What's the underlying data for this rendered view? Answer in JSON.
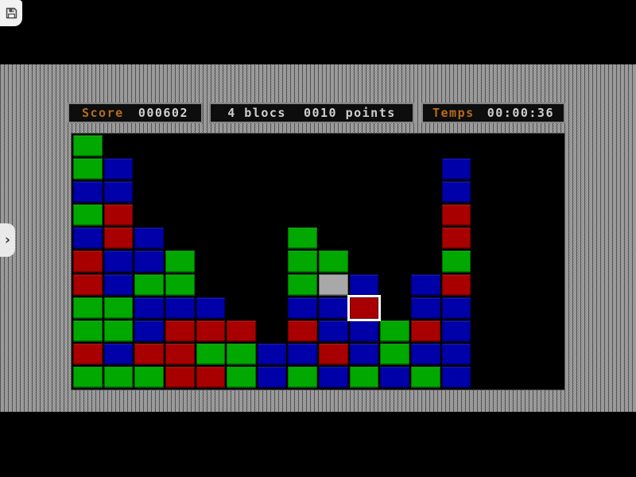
{
  "toolbar": {
    "save_icon": "floppy-disk-icon"
  },
  "hud": {
    "score_label": "Score",
    "score_value": "000602",
    "blocks_text": "4 blocs",
    "points_text": "0010 points",
    "time_label": "Temps",
    "time_value": "00:00:36"
  },
  "drawer": {
    "chevron": "›"
  },
  "colors": {
    "green": "#00A800",
    "blue": "#0000A8",
    "red": "#A80000",
    "gray": "#A8A8A8",
    "label_orange": "#B76B1A",
    "value_gray": "#CFCFCF",
    "cursor_outline": "#FCFCFC",
    "board_background": "#000000"
  },
  "board": {
    "columns": 16,
    "rows": 11,
    "legend": {
      "G": "green",
      "B": "blue",
      "R": "red",
      "S": "gray",
      "X": "red-selected",
      ".": "empty"
    },
    "cursor": {
      "row": 7,
      "col": 9
    },
    "cells": [
      "G...............",
      "GB..........B...",
      "BB..........B...",
      "GR..........R...",
      "BRB....G....R...",
      "RBBG...GG...G...",
      "RBGG...GSB.BR...",
      "GGBBB..BBX.BB...",
      "GGBRRR.RBBGRB...",
      "RBRRGGBBRBGBB...",
      "GGGRRGBGBGBGB..."
    ]
  }
}
